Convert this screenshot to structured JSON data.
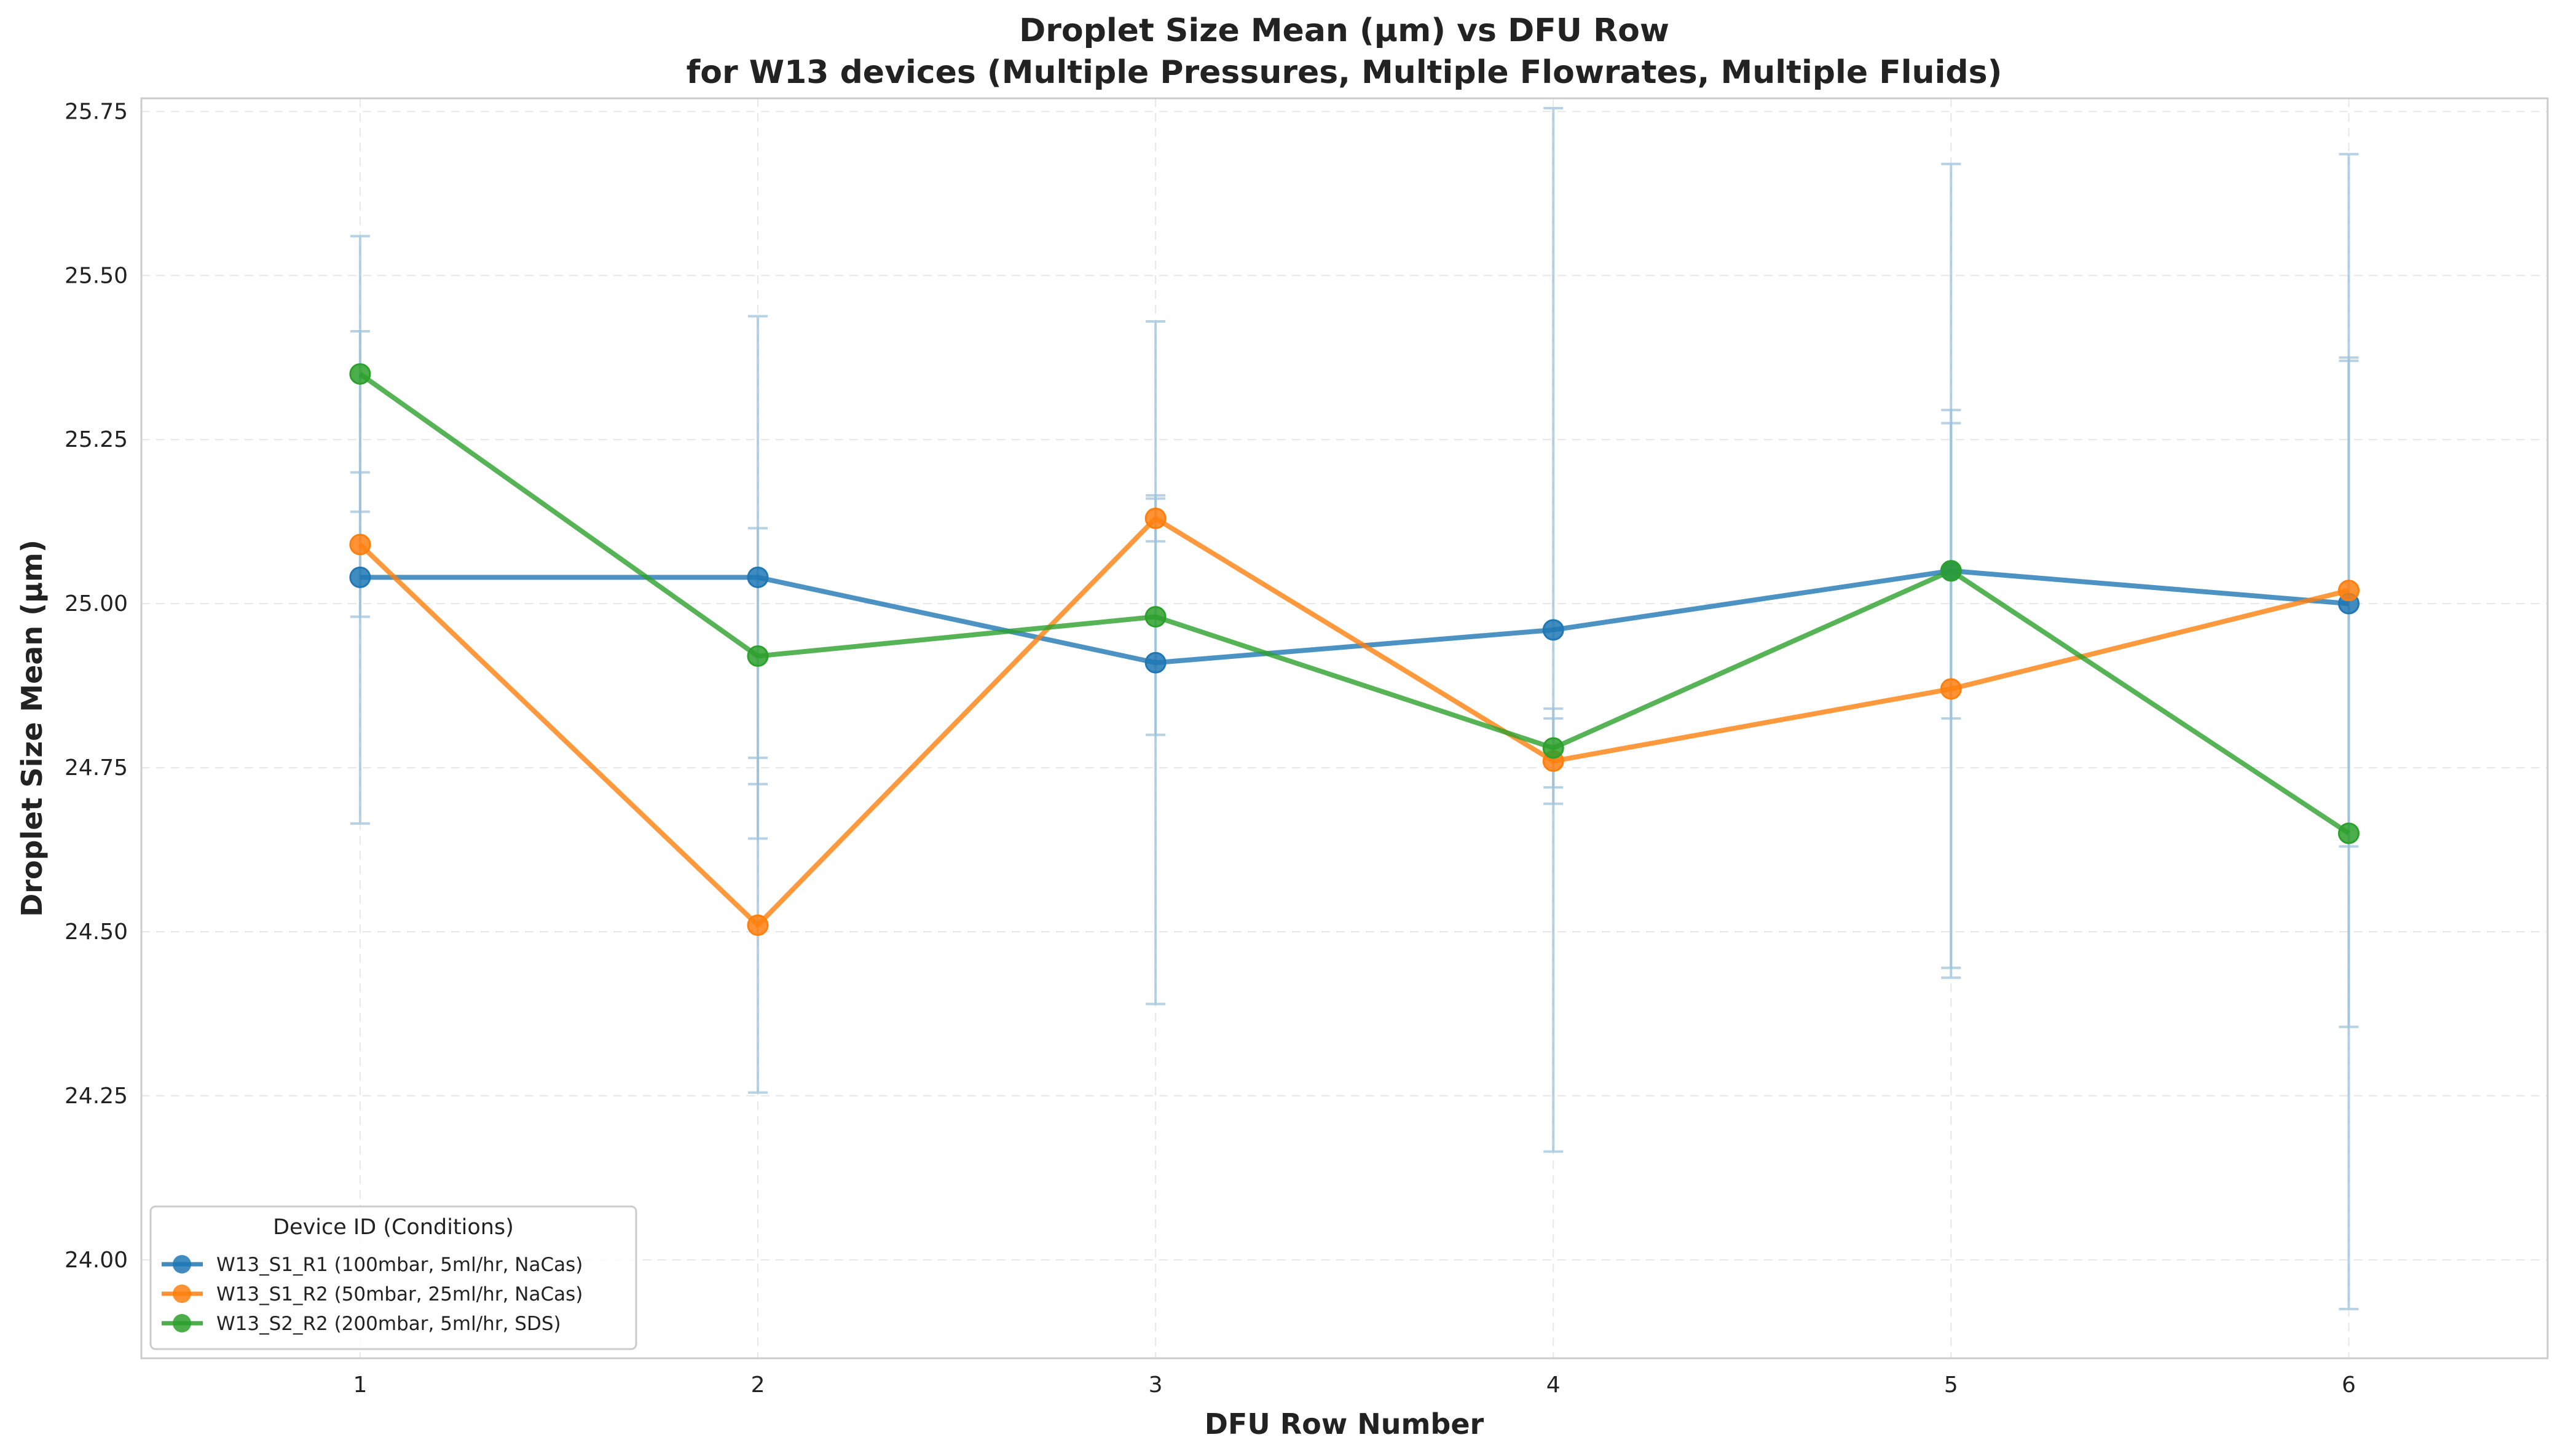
{
  "chart_data": {
    "type": "line",
    "title": "Droplet Size Mean (μm) vs DFU Row",
    "subtitle": "for W13 devices (Multiple Pressures, Multiple Flowrates, Multiple Fluids)",
    "xlabel": "DFU Row Number",
    "ylabel": "Droplet Size Mean (μm)",
    "xlim": [
      0.45,
      6.5
    ],
    "ylim": [
      23.85,
      25.77
    ],
    "x_ticks": [
      1,
      2,
      3,
      4,
      5,
      6
    ],
    "y_ticks": [
      24.0,
      24.25,
      24.5,
      24.75,
      25.0,
      25.25,
      25.5,
      25.75
    ],
    "y_tick_labels": [
      "24.00",
      "24.25",
      "24.50",
      "24.75",
      "25.00",
      "25.25",
      "25.50",
      "25.75"
    ],
    "grid": true,
    "legend_title": "Device ID (Conditions)",
    "legend_position": "lower-left",
    "error_bar_color": "#9ec3dc",
    "series": [
      {
        "name": "W13_S1_R1 (100mbar, 5ml/hr, NaCas)",
        "color": "#1f77b4",
        "x": [
          1,
          2,
          3,
          4,
          5,
          6
        ],
        "y": [
          25.04,
          25.04,
          24.91,
          24.96,
          25.05,
          25.0
        ],
        "err": [
          0.375,
          0.398,
          0.52,
          0.795,
          0.62,
          0.37
        ]
      },
      {
        "name": "W13_S1_R2 (50mbar, 25ml/hr, NaCas)",
        "color": "#ff7f0e",
        "x": [
          1,
          2,
          3,
          4,
          5,
          6
        ],
        "y": [
          25.09,
          24.51,
          25.13,
          24.76,
          24.87,
          25.02
        ],
        "err": [
          0.11,
          0.255,
          0.035,
          0.065,
          0.425,
          0.665
        ]
      },
      {
        "name": "W13_S2_R2 (200mbar, 5ml/hr, SDS)",
        "color": "#2ca02c",
        "x": [
          1,
          2,
          3,
          4,
          5,
          6
        ],
        "y": [
          25.35,
          24.92,
          24.98,
          24.78,
          25.05,
          24.65
        ],
        "err": [
          0.21,
          0.195,
          0.18,
          0.06,
          0.225,
          0.725
        ]
      }
    ]
  }
}
